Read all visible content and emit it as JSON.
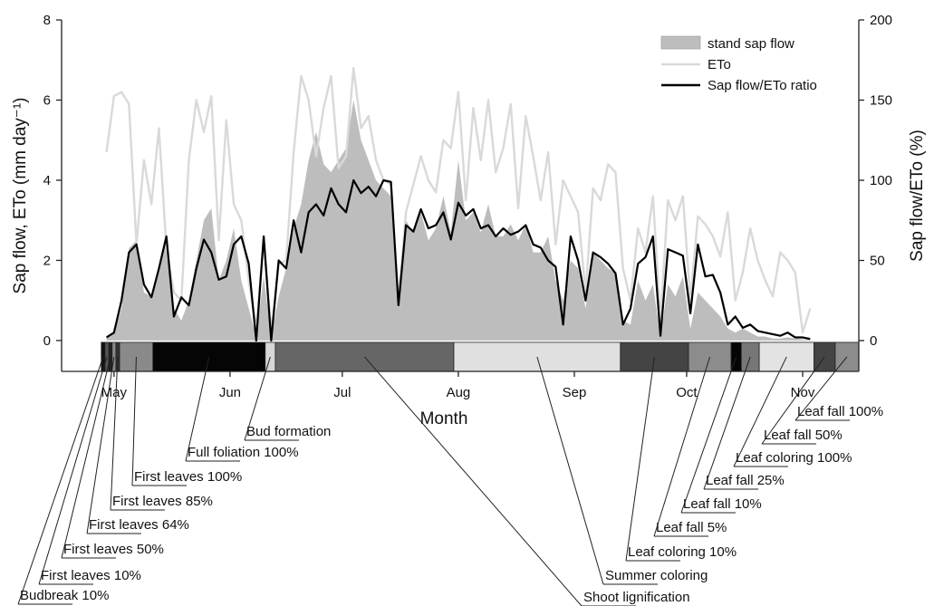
{
  "chart_data": {
    "type": "line",
    "xlabel": "Month",
    "ylabel": "Sap flow, ETo (mm day⁻¹)",
    "y2label": "Sap flow/ETo (%)",
    "xlim": [
      107,
      320
    ],
    "ylim": [
      -0.77,
      8
    ],
    "y2lim": [
      -19.2,
      200
    ],
    "xticks": [
      {
        "value": 121,
        "label": "May"
      },
      {
        "value": 152,
        "label": "Jun"
      },
      {
        "value": 182,
        "label": "Jul"
      },
      {
        "value": 213,
        "label": "Aug"
      },
      {
        "value": 244,
        "label": "Sep"
      },
      {
        "value": 274,
        "label": "Oct"
      },
      {
        "value": 305,
        "label": "Nov"
      }
    ],
    "yticks": [
      0,
      2,
      4,
      6,
      8
    ],
    "y2ticks": [
      0,
      50,
      100,
      150,
      200
    ],
    "legend": "upper right",
    "x": [
      119,
      121,
      123,
      125,
      127,
      129,
      131,
      133,
      135,
      137,
      139,
      141,
      143,
      145,
      147,
      149,
      151,
      153,
      155,
      157,
      159,
      161,
      163,
      165,
      167,
      169,
      171,
      173,
      175,
      177,
      179,
      181,
      183,
      185,
      187,
      189,
      191,
      193,
      195,
      197,
      199,
      201,
      203,
      205,
      207,
      209,
      211,
      213,
      215,
      217,
      219,
      221,
      223,
      225,
      227,
      229,
      231,
      233,
      235,
      237,
      239,
      241,
      243,
      245,
      247,
      249,
      251,
      253,
      255,
      257,
      259,
      261,
      263,
      265,
      267,
      269,
      271,
      273,
      275,
      277,
      279,
      281,
      283,
      285,
      287,
      289,
      291,
      293,
      295,
      297,
      299,
      301,
      303,
      305,
      307
    ],
    "series": [
      {
        "name": "stand sap flow",
        "style": "area",
        "color": "#bdbdbd",
        "values": [
          0.1,
          0.2,
          0.8,
          2.3,
          2.5,
          1.2,
          1.1,
          1.8,
          2.6,
          0.8,
          0.5,
          1.0,
          2.0,
          3.0,
          3.3,
          1.5,
          2.0,
          2.8,
          1.5,
          0.8,
          0.1,
          1.6,
          0.1,
          1.1,
          1.8,
          2.8,
          3.4,
          4.5,
          5.2,
          4.4,
          4.2,
          4.5,
          4.8,
          6.0,
          5.0,
          4.5,
          4.0,
          3.8,
          3.6,
          0.8,
          3.0,
          2.7,
          3.2,
          2.5,
          2.8,
          3.6,
          2.7,
          4.5,
          3.0,
          3.2,
          2.7,
          3.4,
          2.6,
          2.6,
          2.9,
          2.5,
          2.9,
          2.2,
          2.2,
          2.6,
          1.5,
          1.0,
          2.0,
          1.8,
          0.8,
          2.2,
          2.0,
          1.8,
          1.7,
          0.5,
          0.4,
          1.5,
          1.0,
          1.4,
          0.1,
          1.4,
          1.1,
          1.6,
          0.3,
          1.2,
          1.0,
          0.8,
          0.6,
          0.3,
          0.2,
          0.3,
          0.2,
          0.1,
          0.1,
          0.05,
          0.05,
          0.08,
          0.05,
          0.03,
          0.01
        ]
      },
      {
        "name": "ETo",
        "style": "line",
        "color": "#d9d9d9",
        "values": [
          4.7,
          6.1,
          6.2,
          5.9,
          2.4,
          4.5,
          3.4,
          5.3,
          2.3,
          1.2,
          1.0,
          4.5,
          6.0,
          5.2,
          6.1,
          2.5,
          5.5,
          3.4,
          3.0,
          1.5,
          0.3,
          2.6,
          0.2,
          1.9,
          2.0,
          4.7,
          6.6,
          6.0,
          4.6,
          5.8,
          6.6,
          4.3,
          4.6,
          6.8,
          5.3,
          5.6,
          4.5,
          4.0,
          3.9,
          1.0,
          3.2,
          3.9,
          4.6,
          4.0,
          3.7,
          5.0,
          4.8,
          6.2,
          3.5,
          5.8,
          4.5,
          6.0,
          4.2,
          4.8,
          5.9,
          3.3,
          5.6,
          4.6,
          3.5,
          4.7,
          2.4,
          4.0,
          3.6,
          3.2,
          1.2,
          3.8,
          3.5,
          4.4,
          4.2,
          1.8,
          1.0,
          2.8,
          2.2,
          3.6,
          0.5,
          3.5,
          3.0,
          3.6,
          1.0,
          3.1,
          2.9,
          2.6,
          2.1,
          3.2,
          1.0,
          1.7,
          2.8,
          2.0,
          1.5,
          1.1,
          2.2,
          2.0,
          1.7,
          0.2,
          0.8
        ]
      },
      {
        "name": "Sap flow/ETo ratio",
        "style": "line",
        "axis": "y2",
        "color": "#000000",
        "values": [
          2,
          5,
          25,
          55,
          60,
          35,
          27,
          45,
          65,
          15,
          27,
          22,
          45,
          63,
          55,
          38,
          40,
          60,
          65,
          48,
          0,
          65,
          0,
          50,
          45,
          75,
          55,
          80,
          85,
          78,
          95,
          85,
          80,
          100,
          92,
          96,
          90,
          100,
          99,
          22,
          72,
          68,
          82,
          70,
          72,
          80,
          63,
          86,
          78,
          82,
          70,
          72,
          65,
          70,
          66,
          68,
          72,
          60,
          58,
          50,
          46,
          10,
          65,
          50,
          25,
          55,
          52,
          48,
          42,
          10,
          20,
          48,
          52,
          65,
          3,
          57,
          55,
          53,
          17,
          60,
          40,
          41,
          30,
          10,
          15,
          8,
          10,
          6,
          5,
          4,
          3,
          5,
          2,
          2,
          1
        ]
      }
    ],
    "phases": [
      {
        "label": "Budbreak 10%",
        "start": 117.6,
        "end": 118.6,
        "color": "#111111"
      },
      {
        "label": "First leaves 10%",
        "start": 118.6,
        "end": 119.6,
        "color": "#555555"
      },
      {
        "label": "First leaves 50%",
        "start": 119.6,
        "end": 120.5,
        "color": "#222222"
      },
      {
        "label": "First leaves 64%",
        "start": 120.5,
        "end": 121.5,
        "color": "#888888"
      },
      {
        "label": "First leaves 85%",
        "start": 121.5,
        "end": 122.5,
        "color": "#333333"
      },
      {
        "label": "First leaves 100%",
        "start": 122.5,
        "end": 131.4,
        "color": "#8a8a8a"
      },
      {
        "label": "Full foliation 100%",
        "start": 131.4,
        "end": 161.4,
        "color": "#050505"
      },
      {
        "label": "Bud formation",
        "start": 161.4,
        "end": 164.1,
        "color": "#d6d6d6"
      },
      {
        "label": "Shoot lignification",
        "start": 164.1,
        "end": 211.8,
        "color": "#666666"
      },
      {
        "label": "Summer coloring",
        "start": 211.8,
        "end": 256.3,
        "color": "#e0e0e0"
      },
      {
        "label": "Leaf coloring 10%",
        "start": 256.3,
        "end": 274.5,
        "color": "#444444"
      },
      {
        "label": "Leaf fall 5%",
        "start": 274.5,
        "end": 285.9,
        "color": "#8c8c8c"
      },
      {
        "label": "Leaf fall 10%",
        "start": 285.9,
        "end": 288.6,
        "color": "#050505"
      },
      {
        "label": "Leaf fall 25%",
        "start": 288.6,
        "end": 293.4,
        "color": "#777777"
      },
      {
        "label": "Leaf coloring 100%",
        "start": 293.4,
        "end": 308,
        "color": "#e3e3e3"
      },
      {
        "label": "Leaf fall 50%",
        "start": 308,
        "end": 313.7,
        "color": "#444444"
      },
      {
        "label": "Leaf fall 100%",
        "start": 313.7,
        "end": 320,
        "color": "#8c8c8c"
      }
    ]
  }
}
